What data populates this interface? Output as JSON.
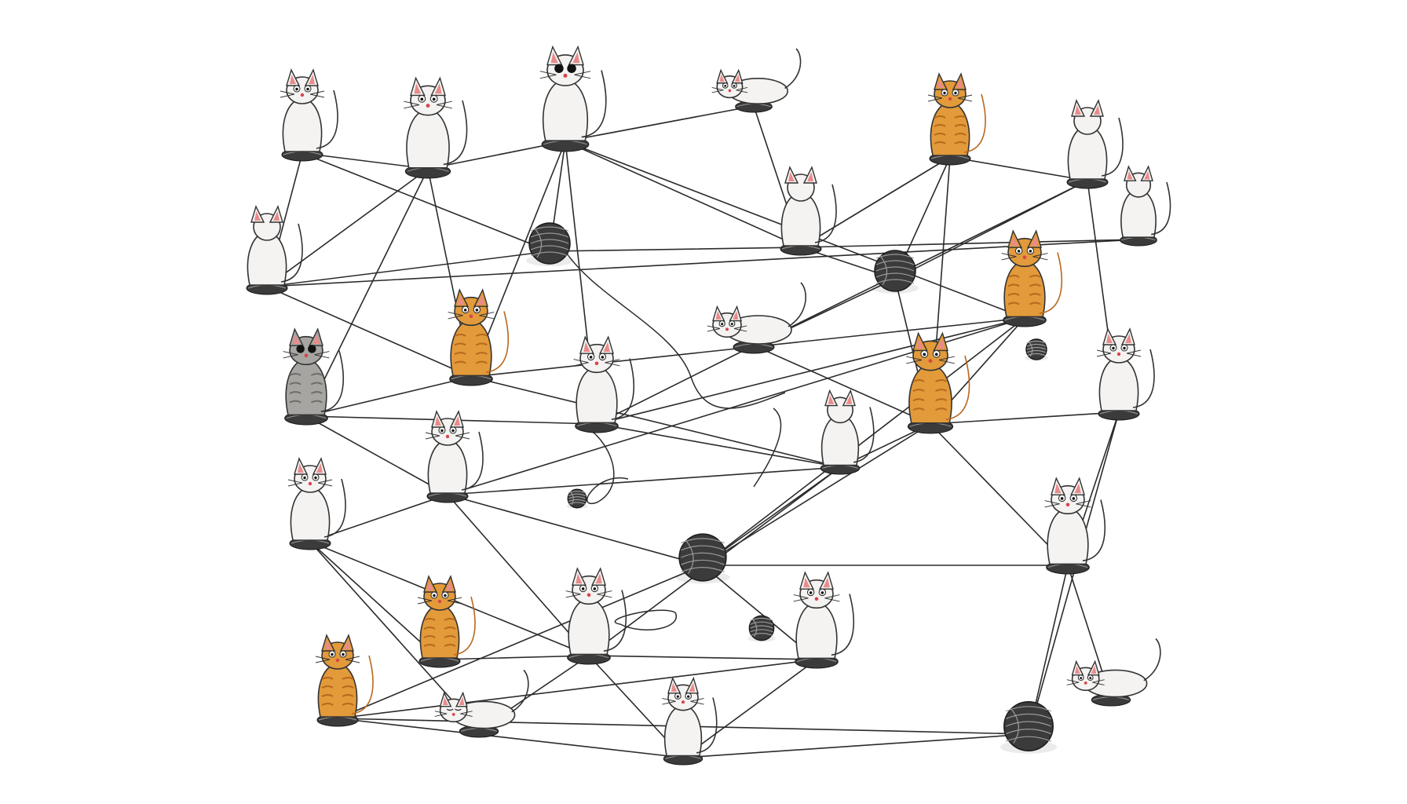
{
  "palette": {
    "background": "#ffffff",
    "thread": "#2b2b2b",
    "white_cat": "#f4f3f1",
    "orange_cat": "#e29a3a",
    "orange_stripe": "#b8681c",
    "gray_cat": "#a7a5a1",
    "ear_inner": "#e98b8b",
    "yarn": "#3b3b3b",
    "yarn_line": "#9a9a9a"
  },
  "nodes": [
    {
      "id": "c1",
      "kind": "cat",
      "coat": "white",
      "pose": "sit-front"
    },
    {
      "id": "c2",
      "kind": "cat",
      "coat": "white",
      "pose": "sit-front"
    },
    {
      "id": "c3",
      "kind": "cat",
      "coat": "white",
      "pose": "sit-front-dark-eyes"
    },
    {
      "id": "c4",
      "kind": "cat",
      "coat": "white",
      "pose": "crouch"
    },
    {
      "id": "c5",
      "kind": "cat",
      "coat": "orange",
      "pose": "sit-side"
    },
    {
      "id": "c6",
      "kind": "cat",
      "coat": "white",
      "pose": "sit-back"
    },
    {
      "id": "c7",
      "kind": "cat",
      "coat": "white",
      "pose": "sit-back"
    },
    {
      "id": "c8",
      "kind": "cat",
      "coat": "white",
      "pose": "sit-back"
    },
    {
      "id": "c9",
      "kind": "cat",
      "coat": "white",
      "pose": "sit-back"
    },
    {
      "id": "c10",
      "kind": "cat",
      "coat": "orange",
      "pose": "sit-front"
    },
    {
      "id": "c11",
      "kind": "cat",
      "coat": "gray",
      "pose": "sit-front-dark-eyes"
    },
    {
      "id": "c12",
      "kind": "cat",
      "coat": "white",
      "pose": "sit-front"
    },
    {
      "id": "c13",
      "kind": "cat",
      "coat": "orange",
      "pose": "sit-front"
    },
    {
      "id": "c14",
      "kind": "cat",
      "coat": "white",
      "pose": "pounce"
    },
    {
      "id": "c15",
      "kind": "cat",
      "coat": "orange",
      "pose": "sit-side"
    },
    {
      "id": "c16",
      "kind": "cat",
      "coat": "white",
      "pose": "sit-front"
    },
    {
      "id": "c17",
      "kind": "cat",
      "coat": "white",
      "pose": "sit-front"
    },
    {
      "id": "c18",
      "kind": "cat",
      "coat": "white",
      "pose": "stretch-up"
    },
    {
      "id": "c19",
      "kind": "cat",
      "coat": "white",
      "pose": "sit-front"
    },
    {
      "id": "c20",
      "kind": "cat",
      "coat": "white",
      "pose": "sit-front"
    },
    {
      "id": "c21",
      "kind": "cat",
      "coat": "white",
      "pose": "sit-front"
    },
    {
      "id": "c22",
      "kind": "cat",
      "coat": "white",
      "pose": "sit-front"
    },
    {
      "id": "c23",
      "kind": "cat",
      "coat": "orange",
      "pose": "sit-front"
    },
    {
      "id": "c24",
      "kind": "cat",
      "coat": "orange",
      "pose": "sit-front"
    },
    {
      "id": "c25",
      "kind": "cat",
      "coat": "white",
      "pose": "lying"
    },
    {
      "id": "c26",
      "kind": "cat",
      "coat": "white",
      "pose": "sit-front"
    },
    {
      "id": "c27",
      "kind": "cat",
      "coat": "white",
      "pose": "crouch"
    },
    {
      "id": "y1",
      "kind": "yarn"
    },
    {
      "id": "y2",
      "kind": "yarn"
    },
    {
      "id": "y3",
      "kind": "yarn"
    },
    {
      "id": "y4",
      "kind": "yarn"
    },
    {
      "id": "y5",
      "kind": "yarn-small"
    },
    {
      "id": "y6",
      "kind": "yarn-small"
    },
    {
      "id": "y7",
      "kind": "yarn-small"
    }
  ],
  "links": [
    [
      "c1",
      "c2"
    ],
    [
      "c2",
      "c3"
    ],
    [
      "c3",
      "c4"
    ],
    [
      "c4",
      "c6"
    ],
    [
      "c6",
      "c5"
    ],
    [
      "c5",
      "c7"
    ],
    [
      "c1",
      "y1"
    ],
    [
      "c1",
      "c9"
    ],
    [
      "c2",
      "c10"
    ],
    [
      "c2",
      "c9"
    ],
    [
      "c2",
      "c11"
    ],
    [
      "c3",
      "y1"
    ],
    [
      "c3",
      "c10"
    ],
    [
      "c3",
      "c12"
    ],
    [
      "c3",
      "c13"
    ],
    [
      "c3",
      "c6"
    ],
    [
      "c9",
      "y1"
    ],
    [
      "y1",
      "c6"
    ],
    [
      "c9",
      "c10"
    ],
    [
      "c9",
      "c8"
    ],
    [
      "c5",
      "y2"
    ],
    [
      "c5",
      "c15"
    ],
    [
      "c5",
      "c6"
    ],
    [
      "c6",
      "y2"
    ],
    [
      "c6",
      "c8"
    ],
    [
      "c7",
      "y2"
    ],
    [
      "c7",
      "c14"
    ],
    [
      "c7",
      "c16"
    ],
    [
      "y2",
      "c14"
    ],
    [
      "y2",
      "c15"
    ],
    [
      "c11",
      "c10"
    ],
    [
      "c11",
      "c17"
    ],
    [
      "c11",
      "c12"
    ],
    [
      "c10",
      "c13"
    ],
    [
      "c10",
      "c18"
    ],
    [
      "c13",
      "c12"
    ],
    [
      "c13",
      "c15"
    ],
    [
      "c13",
      "y3"
    ],
    [
      "c13",
      "c17"
    ],
    [
      "c15",
      "c16"
    ],
    [
      "c15",
      "c19"
    ],
    [
      "c15",
      "y3"
    ],
    [
      "c15",
      "c18"
    ],
    [
      "c16",
      "c19"
    ],
    [
      "c17",
      "c18"
    ],
    [
      "c17",
      "c20"
    ],
    [
      "c17",
      "y3"
    ],
    [
      "c18",
      "y3"
    ],
    [
      "c18",
      "c21"
    ],
    [
      "y3",
      "c22"
    ],
    [
      "y3",
      "c24"
    ],
    [
      "y3",
      "c19"
    ],
    [
      "c19",
      "c27"
    ],
    [
      "c19",
      "y4"
    ],
    [
      "c24",
      "y4"
    ],
    [
      "c24",
      "c26"
    ],
    [
      "c24",
      "c22"
    ],
    [
      "c20",
      "c21"
    ],
    [
      "c20",
      "c23"
    ],
    [
      "c20",
      "c25"
    ],
    [
      "c21",
      "c22"
    ],
    [
      "c21",
      "c26"
    ],
    [
      "c22",
      "c26"
    ],
    [
      "c21",
      "c25"
    ],
    [
      "c23",
      "c21"
    ],
    [
      "c26",
      "y4"
    ],
    [
      "c14",
      "c15"
    ],
    [
      "c12",
      "c14"
    ],
    [
      "c12",
      "c18"
    ],
    [
      "c16",
      "y4"
    ],
    [
      "c17",
      "c21"
    ]
  ]
}
